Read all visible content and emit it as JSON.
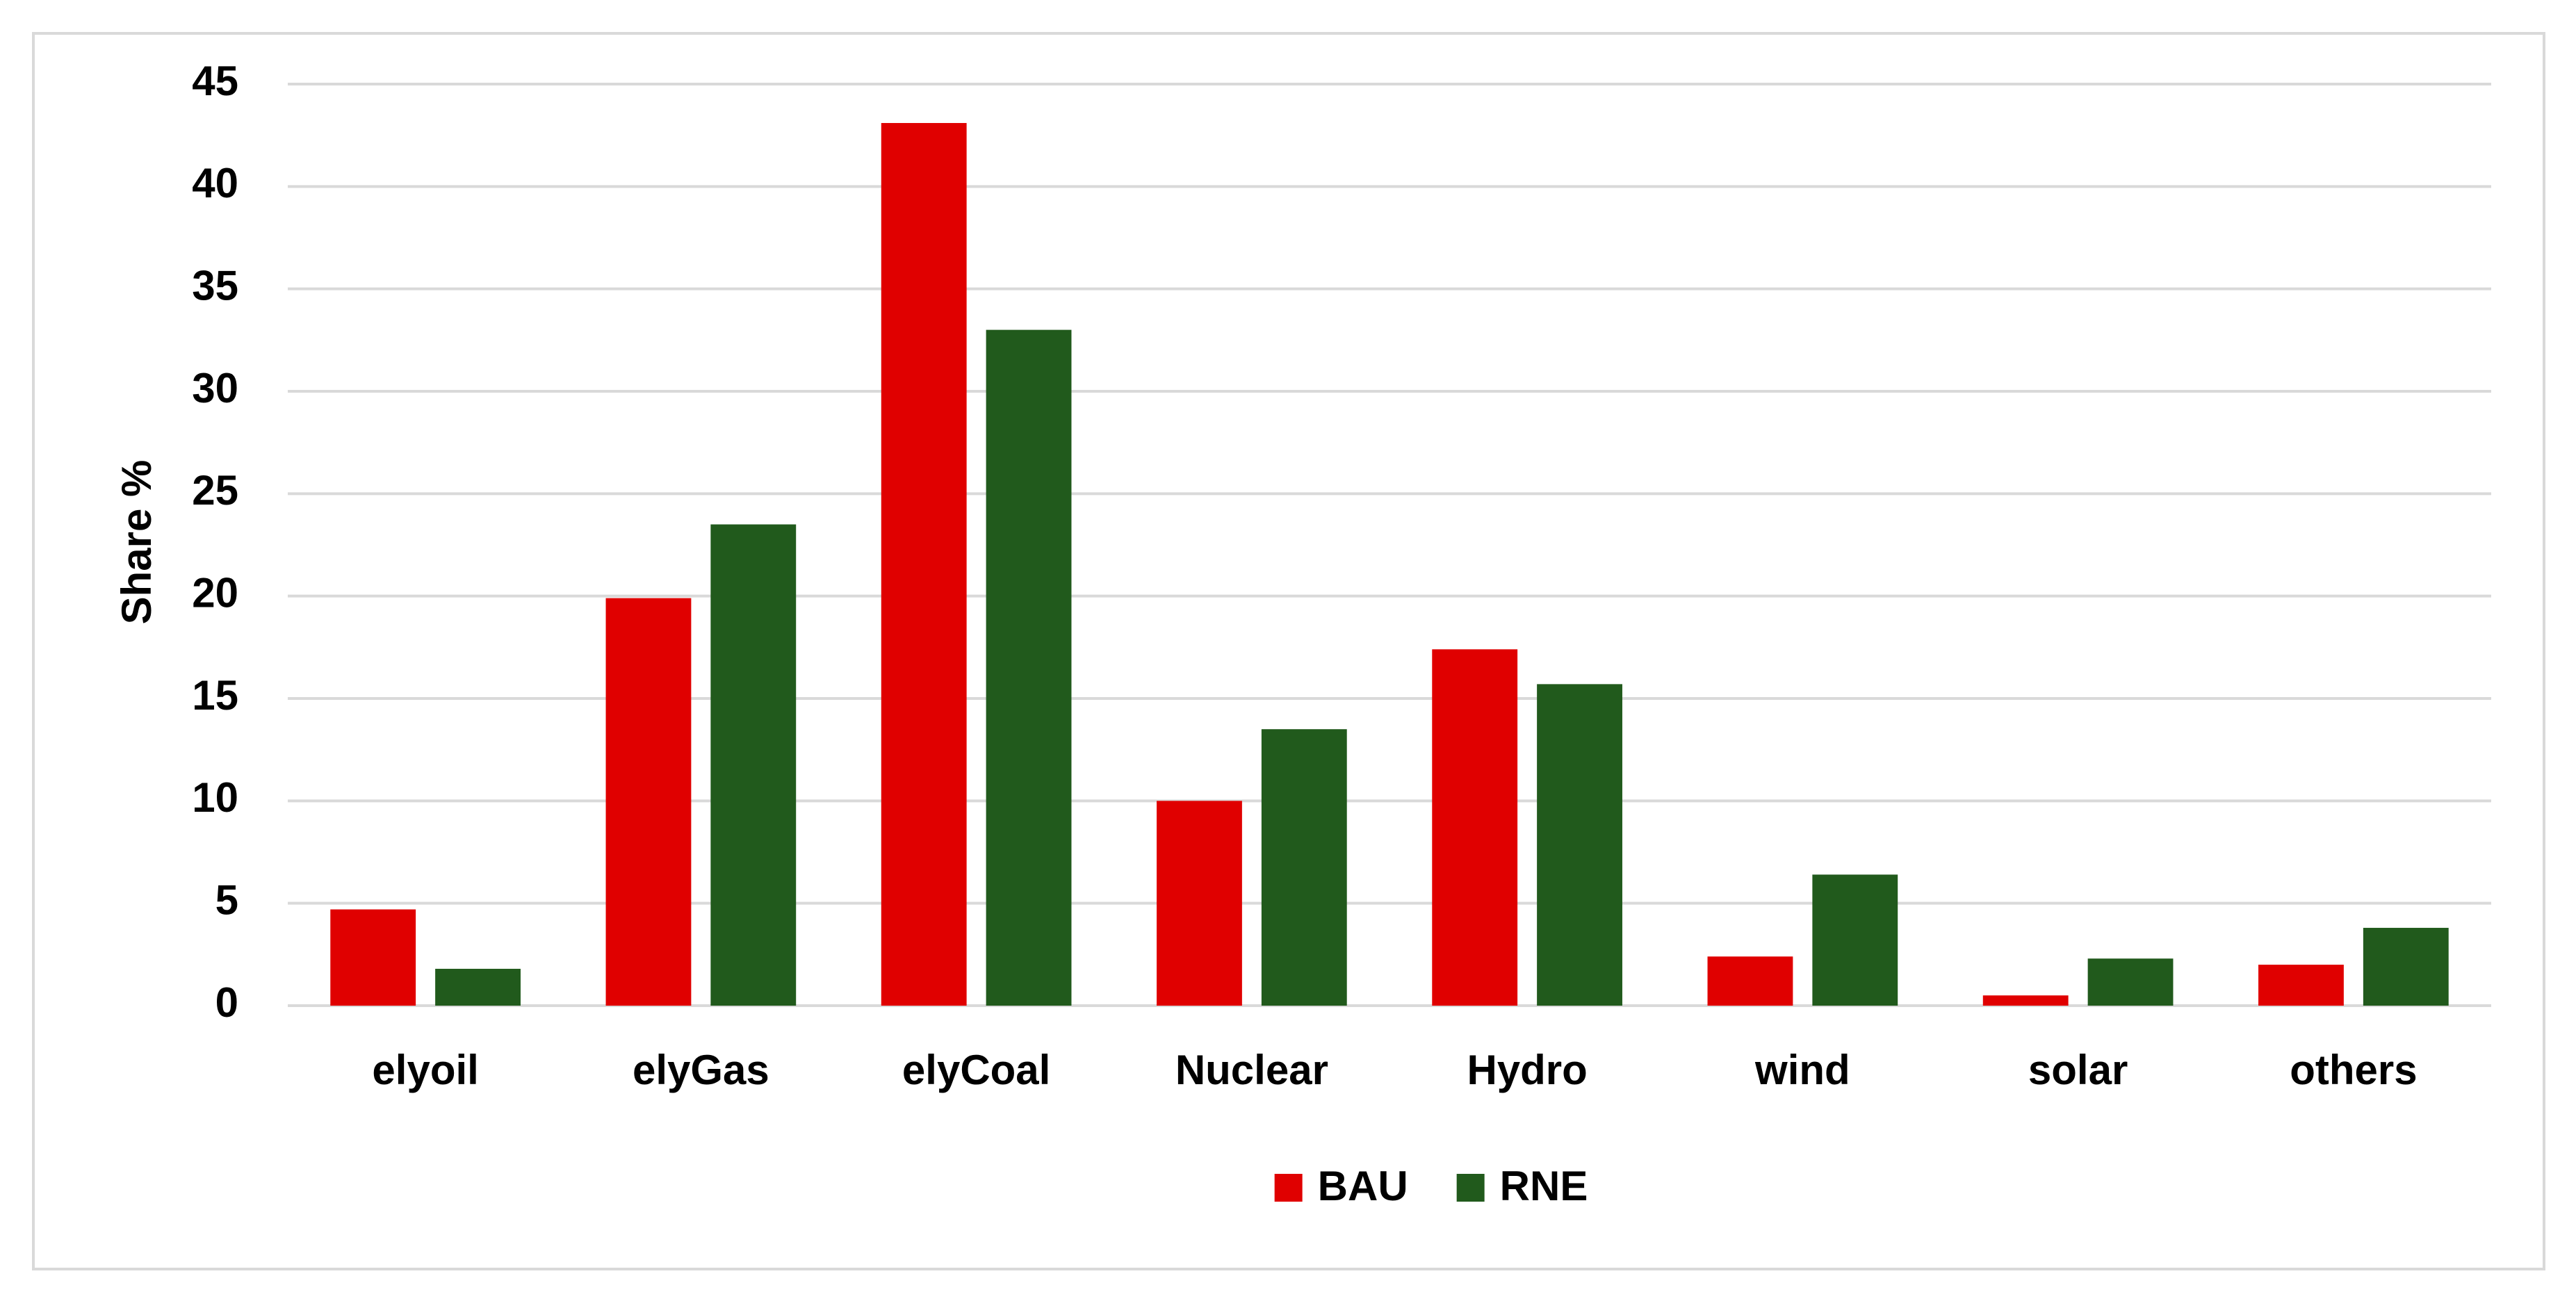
{
  "chart_data": {
    "type": "bar",
    "y_label": "Share %",
    "categories": [
      "elyoil",
      "elyGas",
      "elyCoal",
      "Nuclear",
      "Hydro",
      "wind",
      "solar",
      "others"
    ],
    "series": [
      {
        "name": "BAU",
        "color": "#e00000",
        "values": [
          4.7,
          19.9,
          43.1,
          10.0,
          17.4,
          2.4,
          0.5,
          2.0
        ]
      },
      {
        "name": "RNE",
        "color": "#215a1c",
        "values": [
          1.8,
          23.5,
          33.0,
          13.5,
          15.7,
          6.4,
          2.3,
          3.8
        ]
      }
    ],
    "ylim": [
      0,
      45
    ],
    "yticks": [
      0,
      5,
      10,
      15,
      20,
      25,
      30,
      35,
      40,
      45
    ],
    "grid": true,
    "legend": "bottom"
  }
}
